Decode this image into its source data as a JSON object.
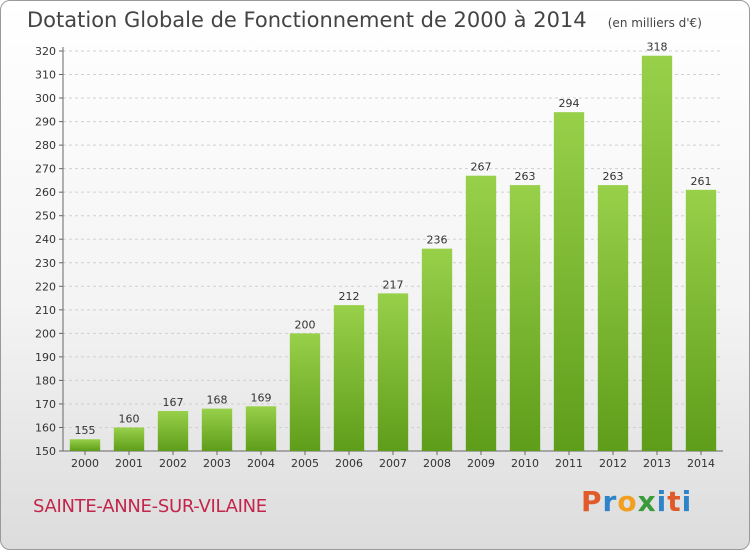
{
  "chart_data": {
    "type": "bar",
    "title": "Dotation Globale de Fonctionnement de 2000 à 2014",
    "subtitle": "(en milliers d'€)",
    "xlabel": "",
    "ylabel": "",
    "categories": [
      "2000",
      "2001",
      "2002",
      "2003",
      "2004",
      "2005",
      "2006",
      "2007",
      "2008",
      "2009",
      "2010",
      "2011",
      "2012",
      "2013",
      "2014"
    ],
    "values": [
      155,
      160,
      167,
      168,
      169,
      200,
      212,
      217,
      236,
      267,
      263,
      294,
      263,
      318,
      261
    ],
    "ylim": [
      150,
      320
    ],
    "yticks": [
      150,
      160,
      170,
      180,
      190,
      200,
      210,
      220,
      230,
      240,
      250,
      260,
      270,
      280,
      290,
      300,
      310,
      320
    ],
    "grid": true,
    "bar_color": "#7ab52c"
  },
  "location": "SAINTE-ANNE-SUR-VILAINE",
  "logo": {
    "letters": [
      "P",
      "r",
      "o",
      "x",
      "i",
      "t",
      "i"
    ],
    "colors": [
      "#e05a2a",
      "#2f83c9",
      "#f0a01e",
      "#3a9b3a",
      "#2f83c9",
      "#e05a2a",
      "#2f83c9"
    ]
  }
}
